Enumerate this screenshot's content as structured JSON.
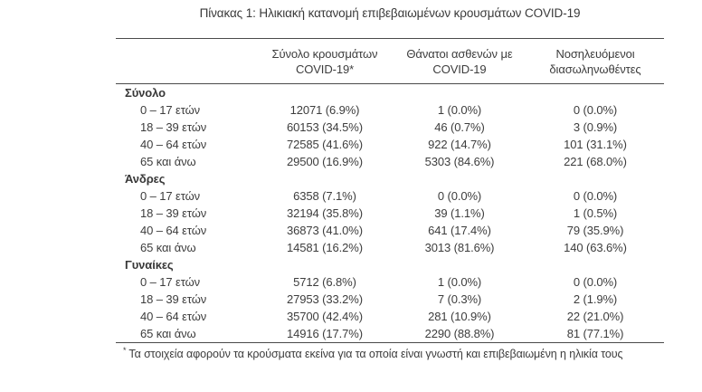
{
  "title": "Πίνακας 1: Ηλικιακή κατανομή επιβεβαιωμένων κρουσμάτων COVID-19",
  "colors": {
    "text": "#3d3d3d",
    "border": "#4a4a4a",
    "background": "#ffffff"
  },
  "table": {
    "columns": {
      "cases": "Σύνολο κρουσμάτων\nCOVID-19*",
      "deaths": "Θάνατοι ασθενών με\nCOVID-19",
      "intubated": "Νοσηλευόμενοι\nδιασωληνωθέντες"
    },
    "sections": [
      {
        "name": "Σύνολο",
        "rows": [
          {
            "label": "0 – 17 ετών",
            "cases": "12071 (6.9%)",
            "deaths": "1 (0.0%)",
            "intubated": "0 (0.0%)"
          },
          {
            "label": "18 – 39 ετών",
            "cases": "60153 (34.5%)",
            "deaths": "46 (0.7%)",
            "intubated": "3 (0.9%)"
          },
          {
            "label": "40 – 64 ετών",
            "cases": "72585 (41.6%)",
            "deaths": "922 (14.7%)",
            "intubated": "101 (31.1%)"
          },
          {
            "label": "65 και άνω",
            "cases": "29500 (16.9%)",
            "deaths": "5303 (84.6%)",
            "intubated": "221 (68.0%)"
          }
        ]
      },
      {
        "name": "Άνδρες",
        "rows": [
          {
            "label": "0 – 17 ετών",
            "cases": "6358 (7.1%)",
            "deaths": "0 (0.0%)",
            "intubated": "0 (0.0%)"
          },
          {
            "label": "18 – 39 ετών",
            "cases": "32194 (35.8%)",
            "deaths": "39 (1.1%)",
            "intubated": "1 (0.5%)"
          },
          {
            "label": "40 – 64 ετών",
            "cases": "36873 (41.0%)",
            "deaths": "641 (17.4%)",
            "intubated": "79 (35.9%)"
          },
          {
            "label": "65 και άνω",
            "cases": "14581 (16.2%)",
            "deaths": "3013 (81.6%)",
            "intubated": "140 (63.6%)"
          }
        ]
      },
      {
        "name": "Γυναίκες",
        "rows": [
          {
            "label": "0 – 17 ετών",
            "cases": "5712 (6.8%)",
            "deaths": "1 (0.0%)",
            "intubated": "0 (0.0%)"
          },
          {
            "label": "18 – 39 ετών",
            "cases": "27953 (33.2%)",
            "deaths": "7 (0.3%)",
            "intubated": "2 (1.9%)"
          },
          {
            "label": "40 – 64 ετών",
            "cases": "35700 (42.4%)",
            "deaths": "281 (10.9%)",
            "intubated": "22 (21.0%)"
          },
          {
            "label": "65 και άνω",
            "cases": "14916 (17.7%)",
            "deaths": "2290 (88.8%)",
            "intubated": "81 (77.1%)"
          }
        ]
      }
    ]
  },
  "footnote": {
    "marker": "*",
    "text": "Τα στοιχεία αφορούν τα κρούσματα εκείνα για τα οποία είναι γνωστή και επιβεβαιωμένη η ηλικία τους"
  }
}
